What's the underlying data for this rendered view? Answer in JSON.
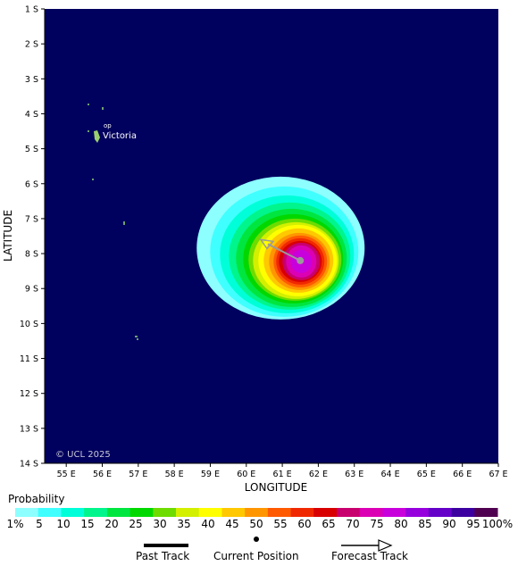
{
  "map": {
    "xlabel": "LONGITUDE",
    "ylabel": "LATITUDE",
    "copyright": "© UCL 2025",
    "lon_ticks": [
      "55 E",
      "56 E",
      "57 E",
      "58 E",
      "59 E",
      "60 E",
      "61 E",
      "62 E",
      "63 E",
      "64 E",
      "65 E",
      "66 E",
      "67 E"
    ],
    "lat_ticks": [
      "1 S",
      "2 S",
      "3 S",
      "4 S",
      "5 S",
      "6 S",
      "7 S",
      "8 S",
      "9 S",
      "10 S",
      "11 S",
      "12 S",
      "13 S",
      "14 S"
    ],
    "ocean_color": "#00005e",
    "place_labels": [
      {
        "name": "Victoria",
        "lon": 55.45,
        "lat": -4.62
      },
      {
        "name": "op",
        "lon": 55.6,
        "lat": -4.38
      }
    ],
    "storm": {
      "current_position": {
        "lon": 61.5,
        "lat": -8.2
      },
      "forecast_track_end": {
        "lon": 60.4,
        "lat": -7.6
      }
    }
  },
  "legend": {
    "title": "Probability",
    "labels": [
      "1%",
      "5",
      "10",
      "15",
      "20",
      "25",
      "30",
      "35",
      "40",
      "45",
      "50",
      "55",
      "60",
      "65",
      "70",
      "75",
      "80",
      "85",
      "90",
      "95",
      "100%"
    ],
    "colors": [
      "#8dffff",
      "#40ffff",
      "#00ffd8",
      "#00f58c",
      "#00e640",
      "#00d800",
      "#6edc00",
      "#d2f000",
      "#ffff00",
      "#ffc800",
      "#ff9600",
      "#ff5a00",
      "#f02800",
      "#d80000",
      "#c8006e",
      "#dc00b4",
      "#c800dc",
      "#9600dc",
      "#6400c8",
      "#3c00a0",
      "#500050"
    ]
  },
  "key": {
    "past_track": "Past Track",
    "current_position": "Current Position",
    "forecast_track": "Forecast Track"
  }
}
